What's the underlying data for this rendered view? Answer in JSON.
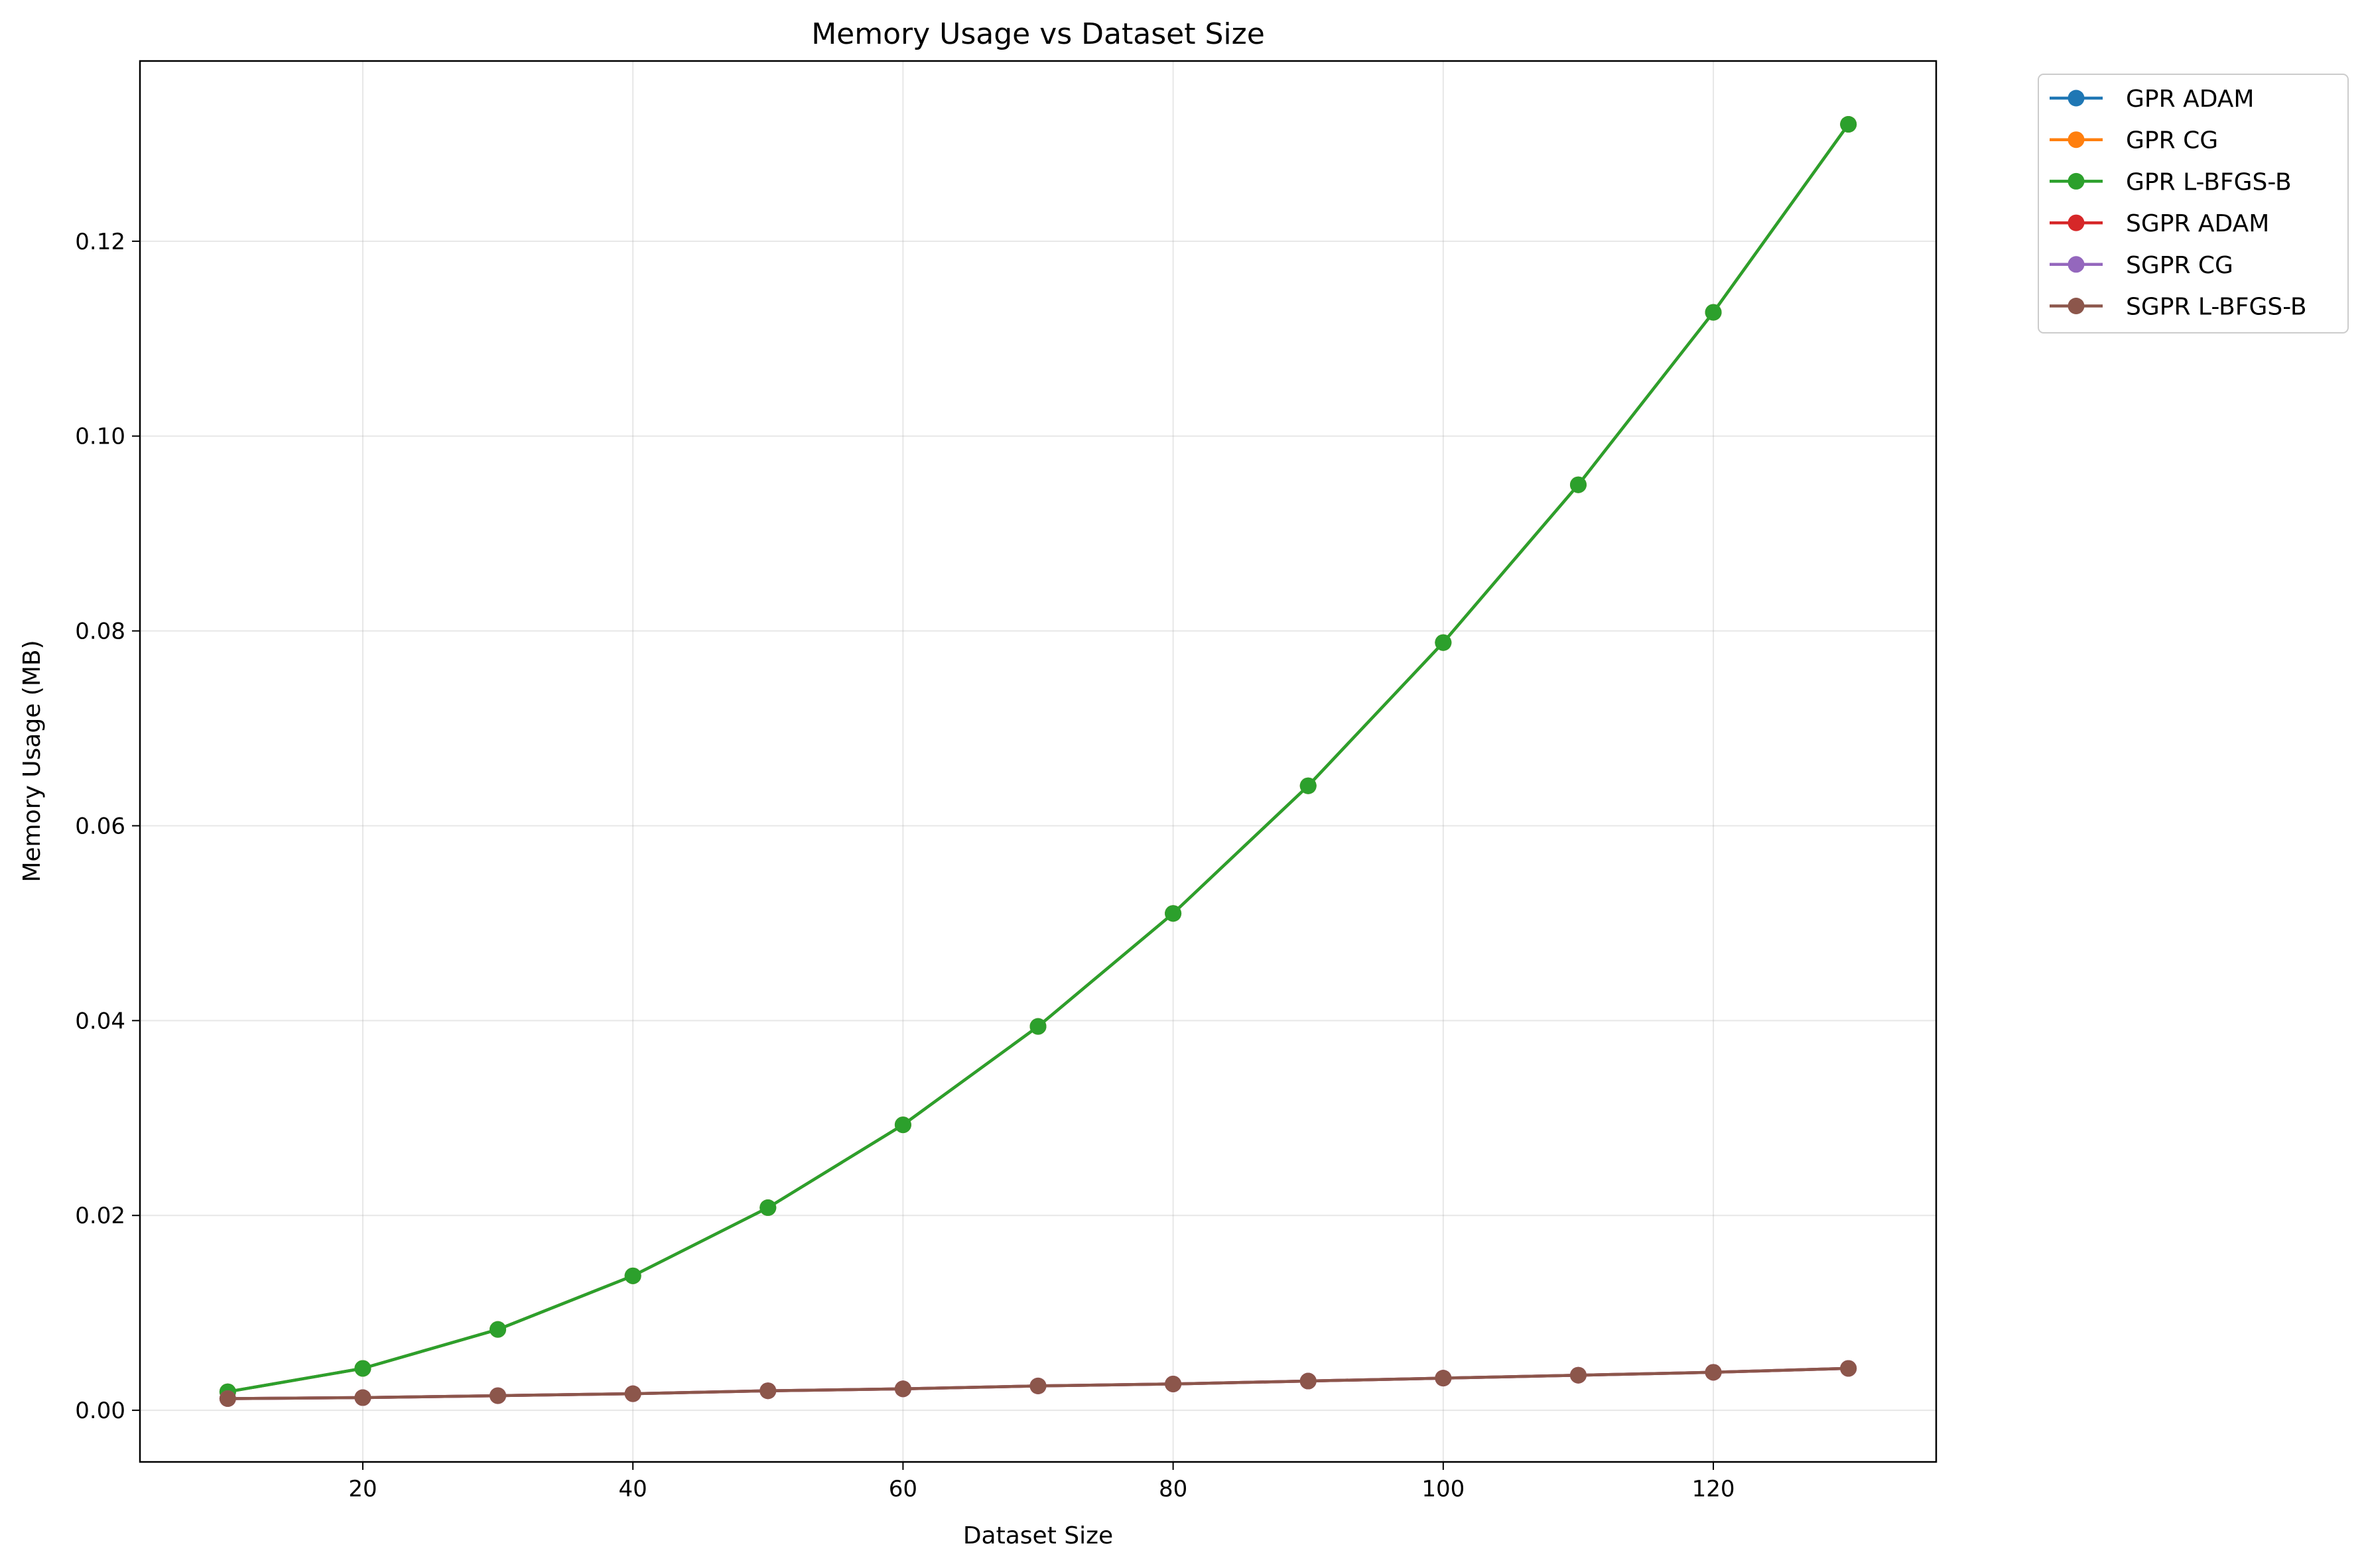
{
  "chart_data": {
    "type": "line",
    "title": "Memory Usage vs Dataset Size",
    "xlabel": "Dataset Size",
    "ylabel": "Memory Usage (MB)",
    "xlim": [
      3.5,
      136.5
    ],
    "ylim": [
      -0.0053,
      0.1385
    ],
    "xticks": [
      20,
      40,
      60,
      80,
      100,
      120
    ],
    "yticks": [
      0.0,
      0.02,
      0.04,
      0.06,
      0.08,
      0.1,
      0.12
    ],
    "ytick_labels": [
      "0.00",
      "0.02",
      "0.04",
      "0.06",
      "0.08",
      "0.10",
      "0.12"
    ],
    "grid": true,
    "legend_position": "outside-top-right",
    "x": [
      10,
      20,
      30,
      40,
      50,
      60,
      70,
      80,
      90,
      100,
      110,
      120,
      130
    ],
    "series": [
      {
        "name": "GPR ADAM",
        "color": "#1f77b4",
        "values": [
          0.0019,
          0.0043,
          0.0083,
          0.0138,
          0.0208,
          0.0293,
          0.0394,
          0.051,
          0.0641,
          0.0788,
          0.095,
          0.1127,
          0.132
        ]
      },
      {
        "name": "GPR CG",
        "color": "#ff7f0e",
        "values": [
          0.0019,
          0.0043,
          0.0083,
          0.0138,
          0.0208,
          0.0293,
          0.0394,
          0.051,
          0.0641,
          0.0788,
          0.095,
          0.1127,
          0.132
        ]
      },
      {
        "name": "GPR L-BFGS-B",
        "color": "#2ca02c",
        "values": [
          0.0019,
          0.0043,
          0.0083,
          0.0138,
          0.0208,
          0.0293,
          0.0394,
          0.051,
          0.0641,
          0.0788,
          0.095,
          0.1127,
          0.132
        ]
      },
      {
        "name": "SGPR ADAM",
        "color": "#d62728",
        "values": [
          0.0012,
          0.0013,
          0.0015,
          0.0017,
          0.002,
          0.0022,
          0.0025,
          0.0027,
          0.003,
          0.0033,
          0.0036,
          0.0039,
          0.0043
        ]
      },
      {
        "name": "SGPR CG",
        "color": "#9467bd",
        "values": [
          0.0012,
          0.0013,
          0.0015,
          0.0017,
          0.002,
          0.0022,
          0.0025,
          0.0027,
          0.003,
          0.0033,
          0.0036,
          0.0039,
          0.0043
        ]
      },
      {
        "name": "SGPR L-BFGS-B",
        "color": "#8c564b",
        "values": [
          0.0012,
          0.0013,
          0.0015,
          0.0017,
          0.002,
          0.0022,
          0.0025,
          0.0027,
          0.003,
          0.0033,
          0.0036,
          0.0039,
          0.0043
        ]
      }
    ]
  }
}
